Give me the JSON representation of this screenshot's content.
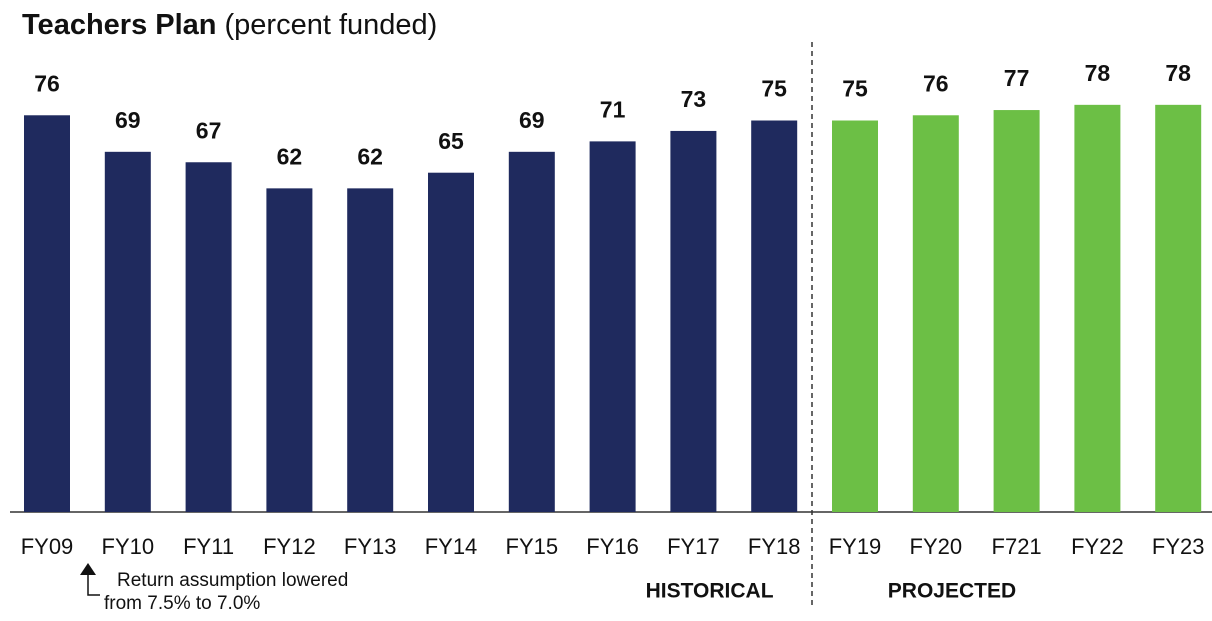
{
  "chart_data": {
    "type": "bar",
    "title": "Teachers Plan",
    "subtitle": "(percent funded)",
    "categories": [
      "FY09",
      "FY10",
      "FY11",
      "FY12",
      "FY13",
      "FY14",
      "FY15",
      "FY16",
      "FY17",
      "FY18",
      "FY19",
      "FY20",
      "F721",
      "FY22",
      "FY23"
    ],
    "series": [
      {
        "name": "HISTORICAL",
        "color": "#1f2a5e",
        "values": [
          76,
          69,
          67,
          62,
          62,
          65,
          69,
          71,
          73,
          75,
          null,
          null,
          null,
          null,
          null
        ]
      },
      {
        "name": "PROJECTED",
        "color": "#6cbf45",
        "values": [
          null,
          null,
          null,
          null,
          null,
          null,
          null,
          null,
          null,
          null,
          75,
          76,
          77,
          78,
          78
        ]
      }
    ],
    "ylim": [
      0,
      100
    ],
    "annotation": [
      "Return assumption lowered",
      "from 7.5% to 7.0%"
    ]
  }
}
